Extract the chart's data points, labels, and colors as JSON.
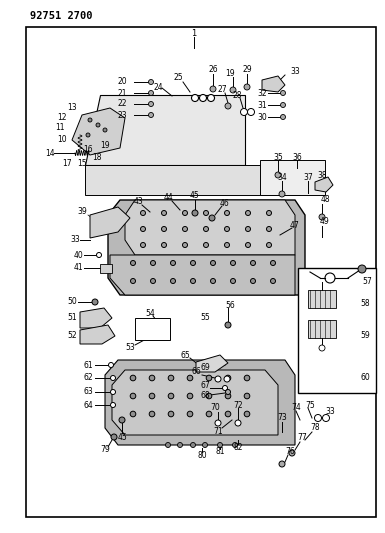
{
  "header_text": "92751 2700",
  "bg_color": "#ffffff",
  "fig_width": 3.85,
  "fig_height": 5.33,
  "dpi": 100
}
